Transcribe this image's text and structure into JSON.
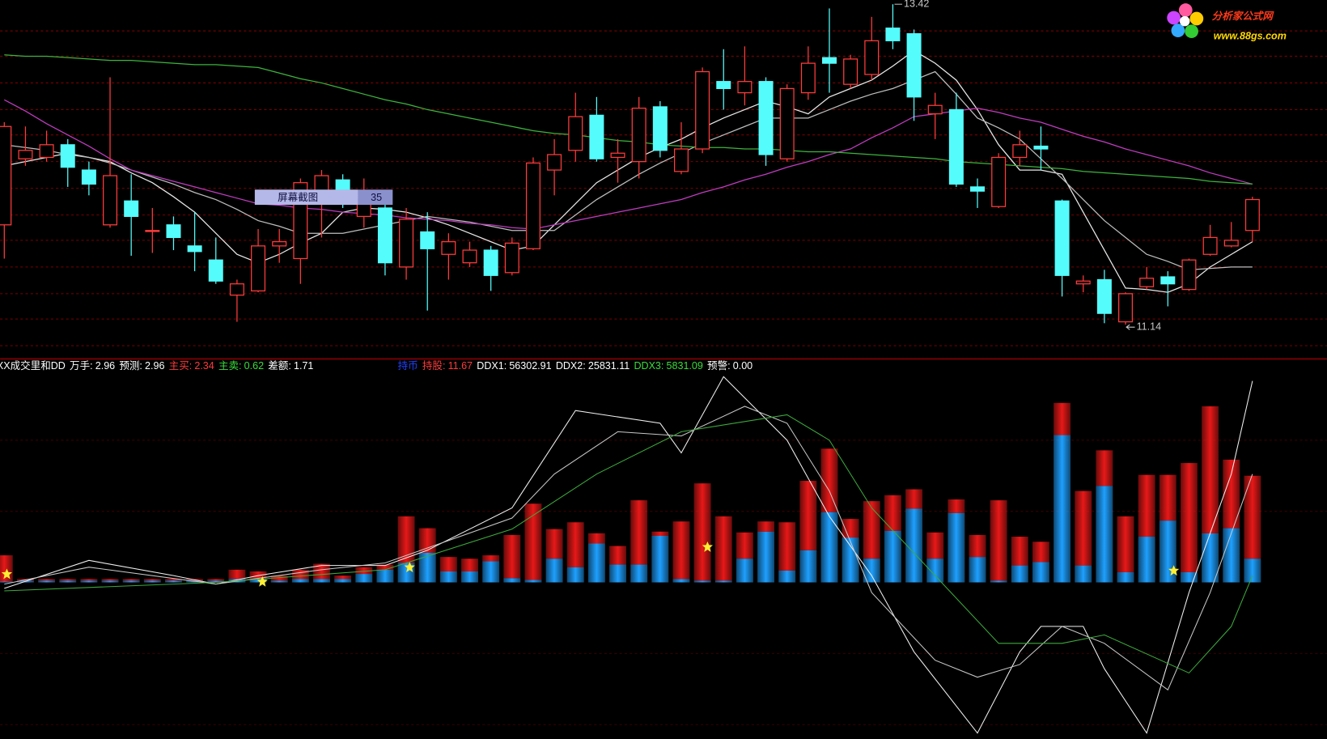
{
  "watermark": {
    "name": "分析家公式网",
    "url": "www.88gs.com"
  },
  "chart_data": [
    {
      "type": "candlestick",
      "up_color": "#ff3b3b",
      "down_color": "#54fcfc",
      "ylim": [
        10.92,
        13.45
      ],
      "yticks": [
        13.23,
        13.05,
        12.86,
        12.67,
        12.49,
        12.3,
        12.11,
        11.92,
        11.74,
        11.55,
        11.36,
        11.18,
        10.99
      ],
      "grid": true,
      "open": [
        11.85,
        12.32,
        12.33,
        12.42,
        12.24,
        11.85,
        12.02,
        11.81,
        11.85,
        11.7,
        11.6,
        11.35,
        11.38,
        11.7,
        11.61,
        12.09,
        12.17,
        11.91,
        11.97,
        11.55,
        11.8,
        11.64,
        11.58,
        11.67,
        11.51,
        11.68,
        12.24,
        12.38,
        12.63,
        12.33,
        12.3,
        12.69,
        12.23,
        12.39,
        12.87,
        12.79,
        12.87,
        12.32,
        12.79,
        13.04,
        12.85,
        12.92,
        13.25,
        13.21,
        12.64,
        12.67,
        12.12,
        11.98,
        12.33,
        12.41,
        12.02,
        11.43,
        11.46,
        11.16,
        11.41,
        11.48,
        11.39,
        11.64,
        11.7,
        11.81
      ],
      "high": [
        12.58,
        12.55,
        12.52,
        12.46,
        12.3,
        12.9,
        12.21,
        11.97,
        11.91,
        11.94,
        11.76,
        11.46,
        11.82,
        11.82,
        12.18,
        12.24,
        12.21,
        12.18,
        12.03,
        11.97,
        11.94,
        11.79,
        11.73,
        11.7,
        11.76,
        12.33,
        12.46,
        12.79,
        12.76,
        12.46,
        12.76,
        12.73,
        12.58,
        12.97,
        13.1,
        13.12,
        12.9,
        12.85,
        13.12,
        13.39,
        13.06,
        13.33,
        13.42,
        13.24,
        12.79,
        12.79,
        12.18,
        12.36,
        12.52,
        12.55,
        12.03,
        11.49,
        11.53,
        11.37,
        11.55,
        11.52,
        11.61,
        11.85,
        11.87,
        12.05
      ],
      "low": [
        11.61,
        12.27,
        12.3,
        12.12,
        12.06,
        11.83,
        11.63,
        11.65,
        11.67,
        11.52,
        11.43,
        11.16,
        11.37,
        11.58,
        11.43,
        11.76,
        11.97,
        11.83,
        11.49,
        11.46,
        11.24,
        11.46,
        11.55,
        11.38,
        11.49,
        11.67,
        12.06,
        12.3,
        12.3,
        12.15,
        12.18,
        12.33,
        12.21,
        12.36,
        12.67,
        12.7,
        12.27,
        12.3,
        12.74,
        12.79,
        12.82,
        12.88,
        13.1,
        12.59,
        12.46,
        12.12,
        11.97,
        11.97,
        12.27,
        12.24,
        11.34,
        11.37,
        11.15,
        11.14,
        11.39,
        11.27,
        11.38,
        11.63,
        11.69,
        11.73
      ],
      "close": [
        12.55,
        12.38,
        12.42,
        12.26,
        12.14,
        12.2,
        11.91,
        11.81,
        11.76,
        11.66,
        11.45,
        11.43,
        11.7,
        11.73,
        12.15,
        12.2,
        12.09,
        12.06,
        11.58,
        11.89,
        11.68,
        11.73,
        11.67,
        11.49,
        11.72,
        12.29,
        12.35,
        12.62,
        12.32,
        12.36,
        12.68,
        12.38,
        12.39,
        12.94,
        12.82,
        12.87,
        12.35,
        12.82,
        13.0,
        13.0,
        13.03,
        13.16,
        13.16,
        12.76,
        12.7,
        12.14,
        12.09,
        12.33,
        12.42,
        12.39,
        11.49,
        11.45,
        11.22,
        11.36,
        11.47,
        11.43,
        11.6,
        11.76,
        11.74,
        12.03
      ],
      "series": [
        {
          "color": "#e8e8e8",
          "values": [
            12.27,
            12.3,
            12.33,
            12.36,
            12.33,
            12.3,
            12.22,
            12.15,
            12.05,
            11.94,
            11.79,
            11.64,
            11.58,
            11.64,
            11.72,
            11.79,
            11.94,
            11.97,
            11.96,
            11.94,
            11.9,
            11.85,
            11.79,
            11.73,
            11.67,
            11.7,
            11.85,
            12.0,
            12.15,
            12.24,
            12.33,
            12.4,
            12.46,
            12.54,
            12.61,
            12.67,
            12.73,
            12.69,
            12.64,
            12.76,
            12.82,
            12.88,
            12.98,
            13.09,
            13.0,
            12.88,
            12.67,
            12.42,
            12.24,
            12.24,
            12.21,
            11.94,
            11.67,
            11.4,
            11.39,
            11.37,
            11.43,
            11.55,
            11.64,
            11.73
          ]
        },
        {
          "color": "#bdbdbd",
          "values": [
            12.42,
            12.4,
            12.38,
            12.35,
            12.33,
            12.29,
            12.24,
            12.19,
            12.14,
            12.08,
            12.03,
            11.96,
            11.88,
            11.84,
            11.79,
            11.79,
            11.79,
            11.82,
            11.85,
            11.88,
            11.91,
            11.89,
            11.87,
            11.84,
            11.81,
            11.81,
            11.81,
            11.92,
            12.03,
            12.12,
            12.21,
            12.29,
            12.36,
            12.43,
            12.49,
            12.55,
            12.61,
            12.61,
            12.61,
            12.67,
            12.73,
            12.78,
            12.82,
            12.88,
            12.94,
            12.78,
            12.61,
            12.54,
            12.46,
            12.32,
            12.18,
            12.03,
            11.88,
            11.76,
            11.64,
            11.59,
            11.53,
            11.54,
            11.55,
            11.55
          ]
        },
        {
          "color": "#c03cc0",
          "values": [
            12.74,
            12.66,
            12.57,
            12.49,
            12.41,
            12.32,
            12.24,
            12.2,
            12.16,
            12.12,
            12.08,
            12.04,
            12.0,
            11.99,
            11.97,
            11.96,
            11.94,
            11.93,
            11.92,
            11.9,
            11.89,
            11.88,
            11.86,
            11.85,
            11.83,
            11.82,
            11.85,
            11.88,
            11.91,
            11.94,
            11.97,
            12.0,
            12.03,
            12.08,
            12.12,
            12.17,
            12.21,
            12.26,
            12.3,
            12.35,
            12.39,
            12.47,
            12.54,
            12.62,
            12.64,
            12.66,
            12.68,
            12.65,
            12.61,
            12.58,
            12.53,
            12.48,
            12.44,
            12.39,
            12.35,
            12.31,
            12.27,
            12.22,
            12.18,
            12.14
          ]
        },
        {
          "color": "#3cb43c",
          "values": [
            13.06,
            13.05,
            13.05,
            13.04,
            13.03,
            13.02,
            13.02,
            13.01,
            13.0,
            12.99,
            12.99,
            12.98,
            12.97,
            12.93,
            12.89,
            12.86,
            12.82,
            12.78,
            12.74,
            12.71,
            12.67,
            12.64,
            12.61,
            12.58,
            12.55,
            12.52,
            12.5,
            12.49,
            12.47,
            12.45,
            12.44,
            12.42,
            12.41,
            12.4,
            12.4,
            12.39,
            12.39,
            12.38,
            12.37,
            12.37,
            12.36,
            12.35,
            12.34,
            12.33,
            12.32,
            12.3,
            12.29,
            12.28,
            12.27,
            12.26,
            12.25,
            12.23,
            12.22,
            12.21,
            12.2,
            12.19,
            12.18,
            12.16,
            12.15,
            12.14
          ]
        }
      ],
      "high_label": 13.42,
      "low_label": 11.14,
      "tooltip": {
        "label": "屏幕截图",
        "value": 35
      }
    },
    {
      "type": "stacked_bar",
      "title": "XX成交里和DD",
      "indicators": [
        {
          "label": "万手:",
          "value": 2.96,
          "color": "#ffffff"
        },
        {
          "label": "预测:",
          "value": 2.96,
          "color": "#ffffff"
        },
        {
          "label": "主买:",
          "value": 2.34,
          "color": "#ff3b3b"
        },
        {
          "label": "主卖:",
          "value": 0.62,
          "color": "#3cdc3c"
        },
        {
          "label": "差额:",
          "value": 1.71,
          "color": "#ffffff"
        }
      ],
      "indicators_right": [
        {
          "label": "持币",
          "color": "#2040ff"
        },
        {
          "label": "持股:",
          "value": 11.67,
          "color": "#ff3b3b"
        },
        {
          "label": "DDX1:",
          "value": 56302.91,
          "color": "#ffffff"
        },
        {
          "label": "DDX2:",
          "value": 25831.11,
          "color": "#ffffff"
        },
        {
          "label": "DDX3:",
          "value": 5831.09,
          "color": "#3cdc3c"
        },
        {
          "label": "预警:",
          "value": {
            "value": 0,
            "label": "0.00"
          },
          "color": "#ffffff"
        }
      ],
      "ylim": [
        -1.85,
        2.48
      ],
      "yticks": [
        -1.68,
        -0.84,
        0.84,
        1.68
      ],
      "grid": true,
      "series": [
        {
          "color": "#1ea0ff",
          "values": [
            0.01,
            0.02,
            0.02,
            0.02,
            0.02,
            0.02,
            0.02,
            0.02,
            0.02,
            0.02,
            0.02,
            0.04,
            0.04,
            0.02,
            0.04,
            0.04,
            0.04,
            0.1,
            0.15,
            0.23,
            0.35,
            0.13,
            0.13,
            0.25,
            0.05,
            0.03,
            0.28,
            0.18,
            0.46,
            0.21,
            0.21,
            0.55,
            0.04,
            0.02,
            0.02,
            0.28,
            0.6,
            0.14,
            0.38,
            0.83,
            0.53,
            0.28,
            0.61,
            0.87,
            0.28,
            0.82,
            0.3,
            0.02,
            0.2,
            0.24,
            1.74,
            0.2,
            1.14,
            0.12,
            0.54,
            0.73,
            0.12,
            0.58,
            0.64,
            0.28
          ]
        },
        {
          "color": "#e81818",
          "values": [
            0.31,
            0.02,
            0.02,
            0.02,
            0.02,
            0.02,
            0.02,
            0.02,
            0.02,
            0.02,
            0.02,
            0.11,
            0.09,
            0.06,
            0.11,
            0.18,
            0.04,
            0.08,
            0.06,
            0.55,
            0.29,
            0.17,
            0.15,
            0.07,
            0.51,
            0.9,
            0.35,
            0.53,
            0.12,
            0.22,
            0.76,
            0.05,
            0.68,
            1.15,
            0.76,
            0.31,
            0.12,
            0.57,
            0.82,
            0.75,
            0.22,
            0.68,
            0.42,
            0.23,
            0.31,
            0.16,
            0.26,
            0.95,
            0.34,
            0.24,
            0.38,
            0.88,
            0.42,
            0.66,
            0.73,
            0.54,
            1.29,
            1.5,
            0.81,
            0.98
          ]
        }
      ],
      "lines": [
        {
          "color": "#f0f0f0",
          "x": [
            0,
            4,
            8,
            10,
            12,
            15,
            18,
            20,
            24,
            27,
            31,
            32,
            34,
            37,
            39,
            41,
            43,
            46,
            48,
            49,
            51,
            52,
            54,
            56,
            58,
            59
          ],
          "values": [
            -0.07,
            0.26,
            0.08,
            -0.02,
            0.08,
            0.2,
            0.2,
            0.38,
            0.88,
            2.03,
            1.88,
            1.53,
            2.43,
            1.68,
            0.78,
            0.08,
            -0.82,
            -1.78,
            -0.82,
            -0.52,
            -0.52,
            -1.02,
            -1.78,
            -0.12,
            1.28,
            2.38
          ]
        },
        {
          "color": "#c8c8c8",
          "x": [
            0,
            4,
            10,
            15,
            18,
            24,
            26,
            29,
            32,
            35,
            37,
            39,
            41,
            44,
            46,
            48,
            50,
            52,
            55,
            57,
            59
          ],
          "values": [
            -0.02,
            0.18,
            -0.02,
            0.15,
            0.23,
            0.76,
            1.28,
            1.78,
            1.73,
            2.08,
            1.88,
            1.08,
            -0.12,
            -0.92,
            -1.12,
            -0.97,
            -0.52,
            -0.72,
            -1.27,
            -0.12,
            1.28
          ]
        },
        {
          "color": "#3caa3c",
          "x": [
            0,
            10,
            18,
            24,
            28,
            32,
            37,
            39,
            41,
            44,
            47,
            50,
            52,
            56,
            58,
            59
          ],
          "values": [
            -0.1,
            0,
            0.15,
            0.63,
            1.28,
            1.78,
            1.98,
            1.68,
            0.88,
            0.08,
            -0.72,
            -0.72,
            -0.62,
            -1.07,
            -0.52,
            0.08
          ]
        }
      ]
    }
  ]
}
